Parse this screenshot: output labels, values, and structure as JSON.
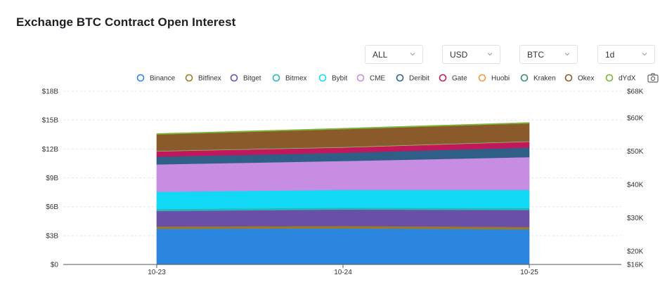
{
  "header": {
    "title": "Exchange BTC Contract Open Interest"
  },
  "filters": [
    {
      "value": "ALL",
      "name": "filter-exchange"
    },
    {
      "value": "USD",
      "name": "filter-currency"
    },
    {
      "value": "BTC",
      "name": "filter-coin"
    },
    {
      "value": "1d",
      "name": "filter-interval"
    }
  ],
  "icons": {
    "chevron": "chevron-down-icon",
    "camera": "camera-icon"
  },
  "chart_data": {
    "type": "area",
    "stacked": true,
    "x": [
      "10-23",
      "10-24",
      "10-25"
    ],
    "series": [
      {
        "name": "Binance",
        "color": "#2b86e0",
        "values": [
          3.7,
          3.75,
          3.65
        ]
      },
      {
        "name": "Bitfinex",
        "color": "#9a7a2a",
        "values": [
          0.25,
          0.25,
          0.25
        ]
      },
      {
        "name": "Bitget",
        "color": "#6a4fa8",
        "values": [
          1.6,
          1.7,
          1.75
        ]
      },
      {
        "name": "Bitmex",
        "color": "#2bb5b5",
        "values": [
          0.2,
          0.2,
          0.2
        ]
      },
      {
        "name": "Bybit",
        "color": "#10d8f5",
        "values": [
          1.8,
          1.85,
          1.9
        ]
      },
      {
        "name": "CME",
        "color": "#c78de3",
        "values": [
          2.85,
          3.0,
          3.4
        ]
      },
      {
        "name": "Deribit",
        "color": "#2f5e86",
        "values": [
          0.8,
          0.85,
          1.0
        ]
      },
      {
        "name": "Gate",
        "color": "#c0185c",
        "values": [
          0.55,
          0.55,
          0.6
        ]
      },
      {
        "name": "Huobi",
        "color": "#f09a3a",
        "values": [
          0.05,
          0.05,
          0.05
        ]
      },
      {
        "name": "Kraken",
        "color": "#3a8a7a",
        "values": [
          0.05,
          0.05,
          0.05
        ]
      },
      {
        "name": "Okex",
        "color": "#8a5a2a",
        "values": [
          1.65,
          1.8,
          1.8
        ]
      },
      {
        "name": "dYdX",
        "color": "#7ab33a",
        "values": [
          0.1,
          0.1,
          0.1
        ]
      }
    ],
    "y_left": {
      "ticks": [
        "$0",
        "$3B",
        "$6B",
        "$9B",
        "$12B",
        "$15B",
        "$18B"
      ],
      "unit": "B USD",
      "range": [
        0,
        18
      ]
    },
    "y_right": {
      "ticks": [
        "$16K",
        "$20K",
        "$30K",
        "$40K",
        "$50K",
        "$60K",
        "$68K"
      ],
      "values": [
        16,
        20,
        30,
        40,
        50,
        60,
        68
      ],
      "range": [
        16,
        68
      ]
    },
    "grid": true,
    "legend_position": "top"
  }
}
